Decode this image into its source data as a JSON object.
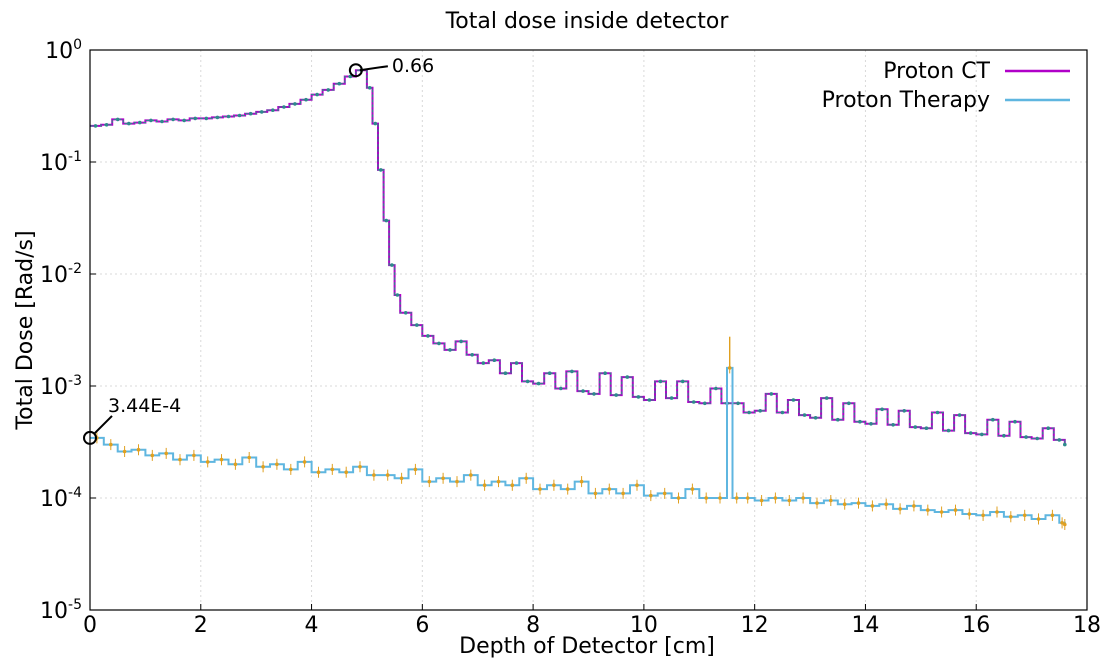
{
  "chart_data": {
    "type": "line",
    "title": "Total dose inside detector",
    "xlabel": "Depth of Detector [cm]",
    "ylabel": "Total Dose [Rad/s]",
    "xlim": [
      0,
      18
    ],
    "ylim": [
      1e-05,
      1
    ],
    "yscale": "log",
    "grid": true,
    "legend_position": "top-right",
    "x_ticks": [
      "0",
      "2",
      "4",
      "6",
      "8",
      "10",
      "12",
      "14",
      "16",
      "18"
    ],
    "y_ticks": [
      {
        "base": "10",
        "exp": "0"
      },
      {
        "base": "10",
        "exp": "-1"
      },
      {
        "base": "10",
        "exp": "-2"
      },
      {
        "base": "10",
        "exp": "-3"
      },
      {
        "base": "10",
        "exp": "-4"
      },
      {
        "base": "10",
        "exp": "-5"
      }
    ],
    "series": [
      {
        "name": "Proton CT",
        "color": "#b000c8",
        "overlay_color": "#2e8b8b",
        "step": true,
        "x": [
          0,
          0.2,
          0.4,
          0.6,
          0.8,
          1.0,
          1.2,
          1.4,
          1.6,
          1.8,
          2.0,
          2.2,
          2.4,
          2.6,
          2.8,
          3.0,
          3.2,
          3.4,
          3.6,
          3.8,
          4.0,
          4.2,
          4.4,
          4.6,
          4.8,
          5.0,
          5.1,
          5.2,
          5.3,
          5.4,
          5.5,
          5.6,
          5.8,
          6.0,
          6.2,
          6.4,
          6.6,
          6.8,
          7.0,
          7.2,
          7.4,
          7.6,
          7.8,
          8.0,
          8.2,
          8.4,
          8.6,
          8.8,
          9.0,
          9.2,
          9.4,
          9.6,
          9.8,
          10.0,
          10.2,
          10.4,
          10.6,
          10.8,
          11.0,
          11.2,
          11.4,
          11.6,
          11.8,
          12.0,
          12.2,
          12.4,
          12.6,
          12.8,
          13.0,
          13.2,
          13.4,
          13.6,
          13.8,
          14.0,
          14.2,
          14.4,
          14.6,
          14.8,
          15.0,
          15.2,
          15.4,
          15.6,
          15.8,
          16.0,
          16.2,
          16.4,
          16.6,
          16.8,
          17.0,
          17.2,
          17.4,
          17.6
        ],
        "y": [
          0.21,
          0.215,
          0.24,
          0.22,
          0.225,
          0.235,
          0.23,
          0.24,
          0.235,
          0.245,
          0.245,
          0.25,
          0.255,
          0.26,
          0.27,
          0.28,
          0.29,
          0.31,
          0.33,
          0.36,
          0.4,
          0.44,
          0.5,
          0.58,
          0.66,
          0.46,
          0.22,
          0.085,
          0.03,
          0.012,
          0.0065,
          0.0045,
          0.0035,
          0.0028,
          0.0024,
          0.0021,
          0.0025,
          0.0019,
          0.0016,
          0.0017,
          0.0013,
          0.0016,
          0.0011,
          0.00105,
          0.0013,
          0.00095,
          0.00135,
          0.0009,
          0.00085,
          0.0013,
          0.00083,
          0.0012,
          0.0008,
          0.00075,
          0.0011,
          0.00078,
          0.0011,
          0.00072,
          0.0007,
          0.00095,
          0.0007,
          0.0007,
          0.00058,
          0.0006,
          0.00085,
          0.00058,
          0.00075,
          0.00055,
          0.00052,
          0.00078,
          0.0005,
          0.0007,
          0.00048,
          0.00046,
          0.00062,
          0.00045,
          0.0006,
          0.00043,
          0.00042,
          0.00058,
          0.0004,
          0.00055,
          0.00038,
          0.00037,
          0.0005,
          0.00036,
          0.00048,
          0.00035,
          0.00034,
          0.00042,
          0.00033,
          0.0003
        ]
      },
      {
        "name": "Proton Therapy",
        "color": "#5fb6e0",
        "errorbar_color": "#e0a020",
        "step": true,
        "x": [
          0,
          0.25,
          0.5,
          0.75,
          1.0,
          1.25,
          1.5,
          1.75,
          2.0,
          2.25,
          2.5,
          2.75,
          3.0,
          3.25,
          3.5,
          3.75,
          4.0,
          4.25,
          4.5,
          4.75,
          5.0,
          5.25,
          5.5,
          5.75,
          6.0,
          6.25,
          6.5,
          6.75,
          7.0,
          7.25,
          7.5,
          7.75,
          8.0,
          8.25,
          8.5,
          8.75,
          9.0,
          9.25,
          9.5,
          9.75,
          10.0,
          10.25,
          10.5,
          10.75,
          11.0,
          11.25,
          11.5,
          11.6,
          11.75,
          12.0,
          12.25,
          12.5,
          12.75,
          13.0,
          13.25,
          13.5,
          13.75,
          14.0,
          14.25,
          14.5,
          14.75,
          15.0,
          15.25,
          15.5,
          15.75,
          16.0,
          16.25,
          16.5,
          16.75,
          17.0,
          17.25,
          17.5,
          17.6
        ],
        "y": [
          0.000344,
          0.0003,
          0.00026,
          0.00027,
          0.00024,
          0.00025,
          0.00022,
          0.00024,
          0.00021,
          0.00022,
          0.0002,
          0.00023,
          0.00019,
          0.0002,
          0.00018,
          0.00021,
          0.00017,
          0.00018,
          0.00017,
          0.00019,
          0.00016,
          0.00016,
          0.00015,
          0.00018,
          0.00014,
          0.00015,
          0.00014,
          0.00016,
          0.00013,
          0.00014,
          0.00013,
          0.00015,
          0.00012,
          0.00013,
          0.00012,
          0.00014,
          0.00011,
          0.00012,
          0.00011,
          0.00013,
          0.000105,
          0.00011,
          0.0001,
          0.00012,
          0.0001,
          0.0001,
          0.00145,
          0.0001,
          0.0001,
          9.5e-05,
          0.0001,
          9.5e-05,
          0.0001,
          9e-05,
          9.5e-05,
          8.8e-05,
          9e-05,
          8.5e-05,
          8.8e-05,
          8e-05,
          8.5e-05,
          7.8e-05,
          7.5e-05,
          7.8e-05,
          7.2e-05,
          7e-05,
          7.5e-05,
          6.8e-05,
          7e-05,
          6.5e-05,
          7e-05,
          6e-05,
          5.8e-05
        ]
      }
    ],
    "annotations": [
      {
        "text": "0.66",
        "x": 4.8,
        "y": 0.66
      },
      {
        "text": "3.44E-4",
        "x": 0,
        "y": 0.000344
      }
    ]
  }
}
